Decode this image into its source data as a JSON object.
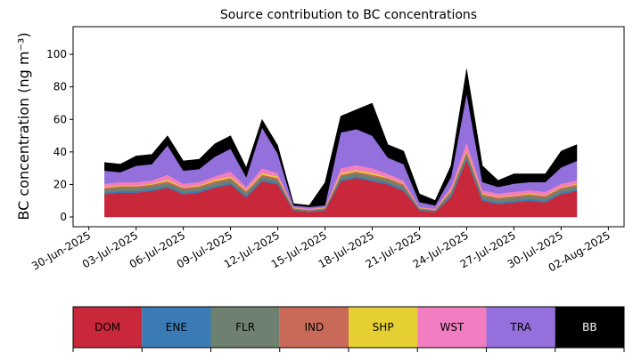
{
  "chart_data": {
    "type": "stacked_area",
    "title": "Source contribution to BC concentrations",
    "y_label": "BC concentration (ng m⁻³)",
    "x": [
      "2025-07-01",
      "2025-07-02",
      "2025-07-03",
      "2025-07-04",
      "2025-07-05",
      "2025-07-06",
      "2025-07-07",
      "2025-07-08",
      "2025-07-09",
      "2025-07-10",
      "2025-07-11",
      "2025-07-12",
      "2025-07-13",
      "2025-07-14",
      "2025-07-15",
      "2025-07-16",
      "2025-07-17",
      "2025-07-18",
      "2025-07-19",
      "2025-07-20",
      "2025-07-21",
      "2025-07-22",
      "2025-07-23",
      "2025-07-24",
      "2025-07-25",
      "2025-07-26",
      "2025-07-27",
      "2025-07-28",
      "2025-07-29",
      "2025-07-30",
      "2025-07-31"
    ],
    "xlim": [
      "2025-06-29",
      "2025-08-03"
    ],
    "xticks": [
      {
        "value": "2025-06-30",
        "label": "30-Jun-2025"
      },
      {
        "value": "2025-07-03",
        "label": "03-Jul-2025"
      },
      {
        "value": "2025-07-06",
        "label": "06-Jul-2025"
      },
      {
        "value": "2025-07-09",
        "label": "09-Jul-2025"
      },
      {
        "value": "2025-07-12",
        "label": "12-Jul-2025"
      },
      {
        "value": "2025-07-15",
        "label": "15-Jul-2025"
      },
      {
        "value": "2025-07-18",
        "label": "18-Jul-2025"
      },
      {
        "value": "2025-07-21",
        "label": "21-Jul-2025"
      },
      {
        "value": "2025-07-24",
        "label": "24-Jul-2025"
      },
      {
        "value": "2025-07-27",
        "label": "27-Jul-2025"
      },
      {
        "value": "2025-07-30",
        "label": "30-Jul-2025"
      },
      {
        "value": "2025-08-02",
        "label": "02-Aug-2025"
      }
    ],
    "ylim": [
      -6,
      117
    ],
    "yticks": [
      0,
      20,
      40,
      60,
      80,
      100
    ],
    "series": [
      {
        "name": "DOM",
        "color": "#c9283a",
        "values": [
          14,
          15,
          15,
          16,
          18,
          14,
          15,
          18,
          20,
          12,
          22,
          20,
          4,
          3,
          4,
          22,
          24,
          22,
          20,
          16,
          4,
          3,
          12,
          35,
          10,
          8,
          9,
          10,
          9,
          14,
          16
        ]
      },
      {
        "name": "ENE",
        "color": "#3a7ab5",
        "values": [
          1,
          1,
          1,
          1,
          1,
          1,
          1,
          1,
          1,
          1,
          1,
          1,
          0.5,
          0.5,
          0.5,
          1,
          1,
          1,
          1,
          1,
          0.5,
          0.5,
          1,
          1,
          1,
          1,
          1,
          1,
          1,
          1,
          1
        ]
      },
      {
        "name": "FLR",
        "color": "#6e8070",
        "values": [
          2,
          2,
          2,
          2,
          2,
          2,
          2,
          2,
          2,
          2,
          2,
          2,
          0.5,
          0.5,
          0.5,
          2,
          2,
          2,
          2,
          2,
          0.5,
          0.5,
          2,
          3,
          2,
          2,
          2,
          2,
          2,
          2,
          2
        ]
      },
      {
        "name": "IND",
        "color": "#c96a58",
        "values": [
          1,
          1,
          1,
          1,
          1,
          1,
          1,
          1,
          1,
          1,
          1,
          1,
          0.5,
          0.5,
          0.5,
          1,
          1,
          1,
          1,
          1,
          0.5,
          0.5,
          1,
          1,
          1,
          1,
          1,
          1,
          1,
          1,
          1
        ]
      },
      {
        "name": "SHP",
        "color": "#e6cf32",
        "values": [
          0.5,
          0.5,
          0.5,
          0.5,
          1,
          0.5,
          0.5,
          1,
          1,
          0.5,
          1,
          1,
          0.2,
          0.2,
          0.2,
          1,
          1,
          1,
          0.5,
          0.5,
          0.2,
          0.2,
          0.5,
          1,
          0.5,
          0.5,
          0.5,
          0.5,
          0.5,
          0.5,
          0.5
        ]
      },
      {
        "name": "WST",
        "color": "#f27ec1",
        "values": [
          2,
          2,
          2,
          2,
          3,
          2,
          2,
          2,
          3,
          2,
          3,
          2,
          0.5,
          0.5,
          0.5,
          3,
          3,
          3,
          2,
          2,
          0.5,
          0.5,
          2,
          5,
          2,
          2,
          2,
          2,
          2,
          2,
          2
        ]
      },
      {
        "name": "TRA",
        "color": "#9370db",
        "values": [
          8,
          6,
          10,
          10,
          18,
          8,
          8,
          12,
          14,
          6,
          25,
          12,
          1,
          1,
          1,
          22,
          22,
          20,
          10,
          10,
          3,
          2,
          6,
          30,
          5,
          4,
          5,
          5,
          6,
          10,
          12
        ]
      },
      {
        "name": "BB",
        "color": "#000000",
        "values": [
          5,
          5,
          6,
          6,
          6,
          6,
          6,
          8,
          8,
          6,
          5,
          5,
          1,
          1,
          14,
          10,
          12,
          20,
          8,
          8,
          5,
          3,
          7,
          15,
          10,
          4,
          6,
          5,
          5,
          10,
          10
        ]
      }
    ]
  }
}
